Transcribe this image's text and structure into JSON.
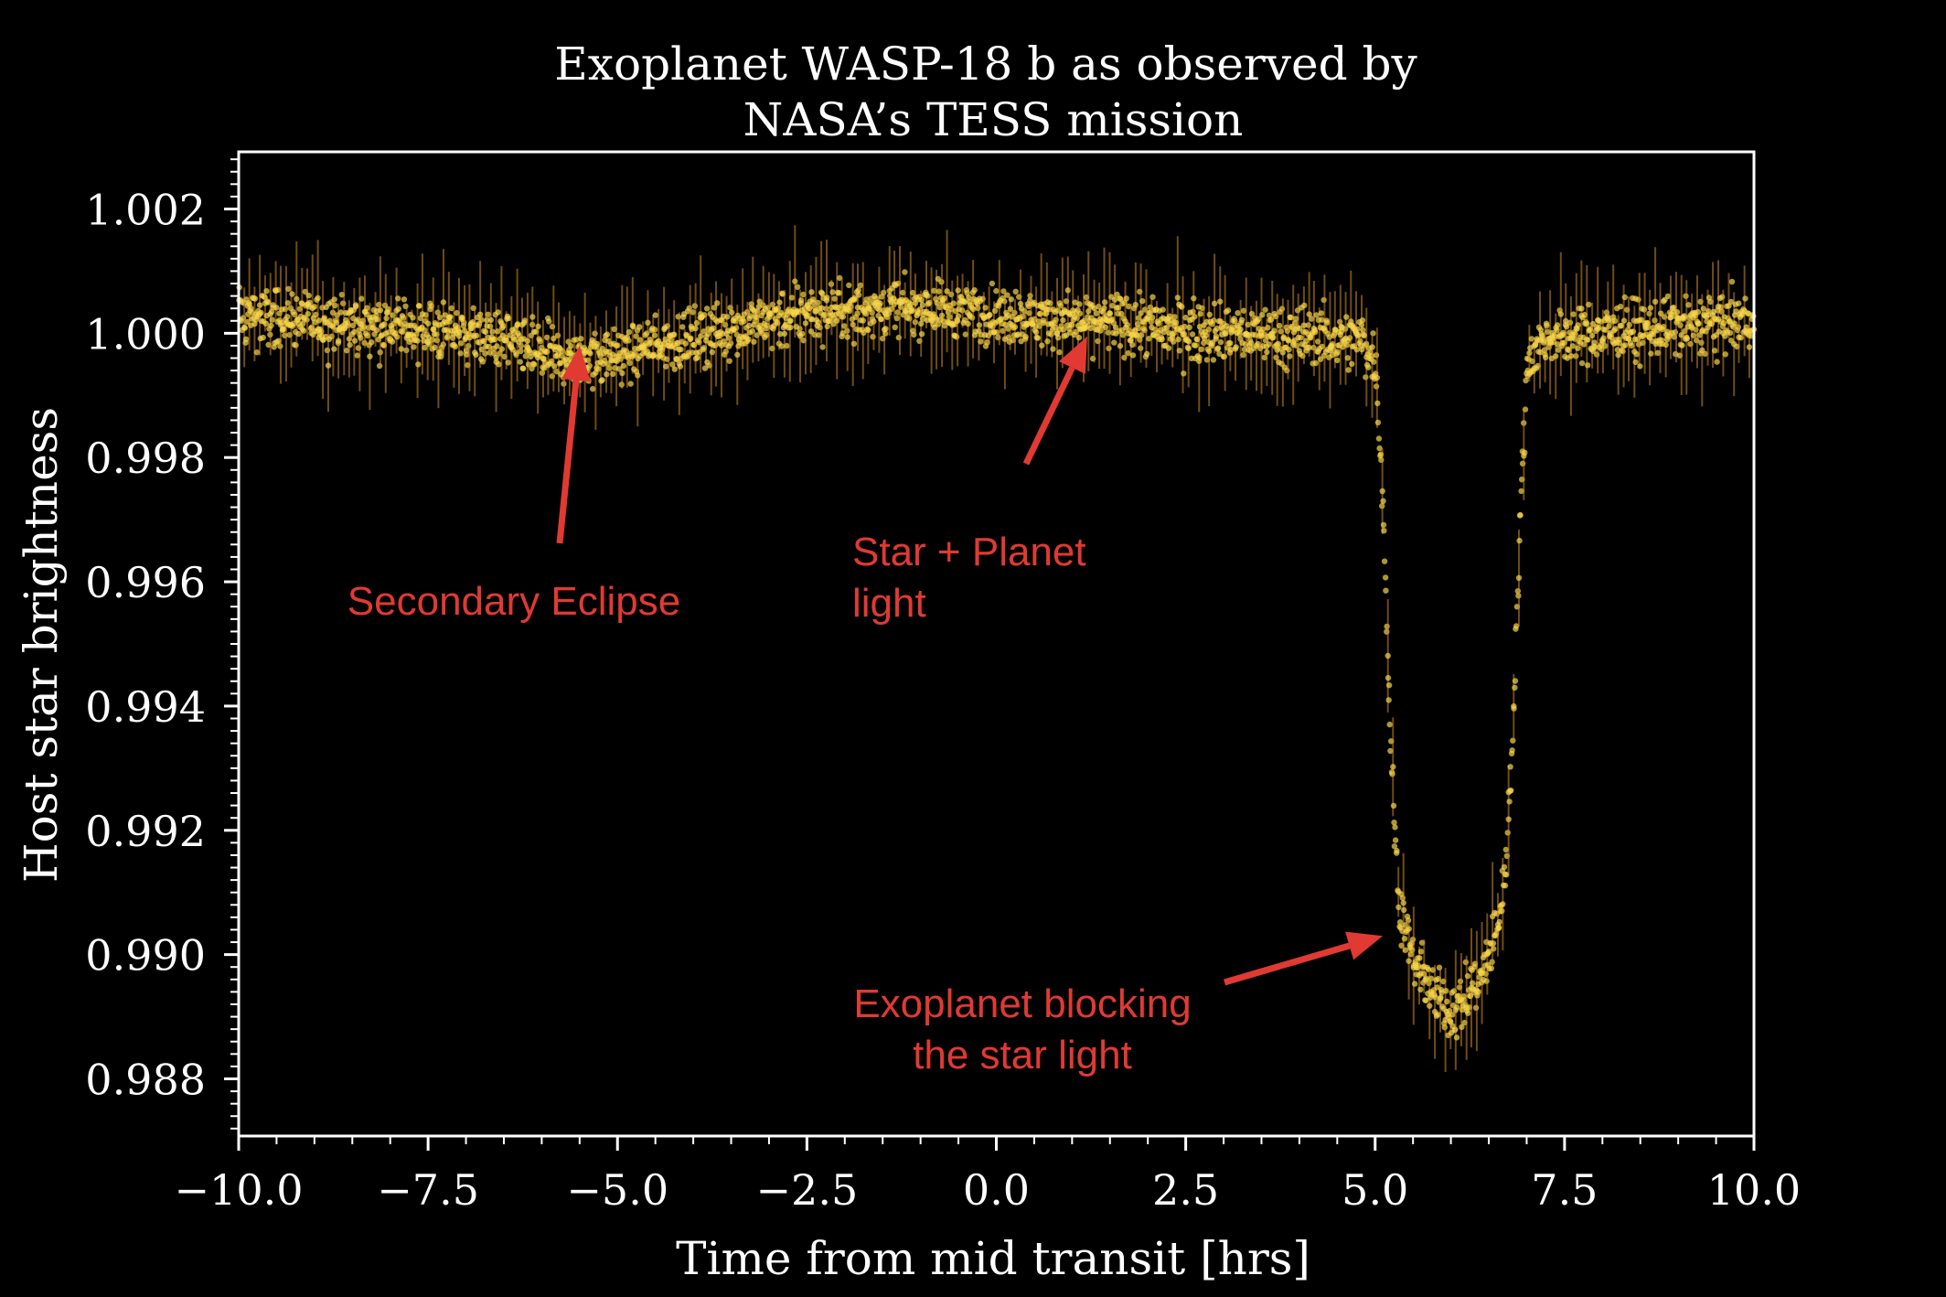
{
  "chart_data": {
    "type": "scatter",
    "title": "Exoplanet WASP-18 b as observed by\nNASA’s TESS mission",
    "xlabel": "Time from mid transit [hrs]",
    "ylabel": "Host star brightness",
    "xlim": [
      -10.0,
      10.0
    ],
    "ylim": [
      0.98708,
      1.00292
    ],
    "xticks": [
      -10.0,
      -7.5,
      -5.0,
      -2.5,
      0.0,
      2.5,
      5.0,
      7.5,
      10.0
    ],
    "xtick_labels": [
      "−10.0",
      "−7.5",
      "−5.0",
      "−2.5",
      "0.0",
      "2.5",
      "5.0",
      "7.5",
      "10.0"
    ],
    "yticks": [
      0.988,
      0.99,
      0.992,
      0.994,
      0.996,
      0.998,
      1.0,
      1.002
    ],
    "ytick_labels": [
      "0.988",
      "0.990",
      "0.992",
      "0.994",
      "0.996",
      "0.998",
      "1.000",
      "1.002"
    ],
    "grid": false,
    "legend": "none",
    "colors": {
      "background": "#000000",
      "axes": "#ffffff",
      "points": "#f7d64a",
      "annotation": "#e03a33"
    },
    "series": [
      {
        "x": [
          -10.0,
          -9.0,
          -8.0,
          -7.0,
          -6.5,
          -6.0,
          -5.5,
          -5.0,
          -4.5,
          -4.0,
          -3.0,
          -2.0,
          -1.0,
          0.0,
          1.0,
          2.0,
          3.0,
          4.0,
          4.8,
          5.0,
          5.1,
          5.2,
          5.3,
          5.5,
          5.8,
          6.0,
          6.2,
          6.5,
          6.7,
          6.8,
          6.9,
          7.0,
          7.2,
          7.5,
          8.0,
          9.0,
          10.0
        ],
        "y": [
          1.0003,
          1.0002,
          1.0001,
          1.0,
          0.99985,
          0.99965,
          0.9996,
          0.99965,
          0.9998,
          0.99995,
          1.0002,
          1.0004,
          1.0004,
          1.0003,
          1.0002,
          1.0001,
          1.0,
          0.99995,
          0.9999,
          0.9996,
          0.9975,
          0.9935,
          0.991,
          0.9899,
          0.9893,
          0.9891,
          0.9893,
          0.9899,
          0.991,
          0.993,
          0.9965,
          0.99945,
          0.9999,
          0.99995,
          1.0,
          1.0001,
          1.0002
        ]
      }
    ],
    "annotations": [
      {
        "text": "Secondary Eclipse",
        "lines": [
          "Secondary Eclipse"
        ],
        "x": -5.5,
        "y": 0.9998
      },
      {
        "text": "Star + Planet\nlight",
        "lines": [
          "Star + Planet",
          "light"
        ],
        "x": 1.2,
        "y": 0.99995
      },
      {
        "text": "Exoplanet blocking\nthe star light",
        "lines": [
          "Exoplanet blocking",
          "the star light"
        ],
        "x": 5.1,
        "y": 0.9903
      }
    ]
  }
}
